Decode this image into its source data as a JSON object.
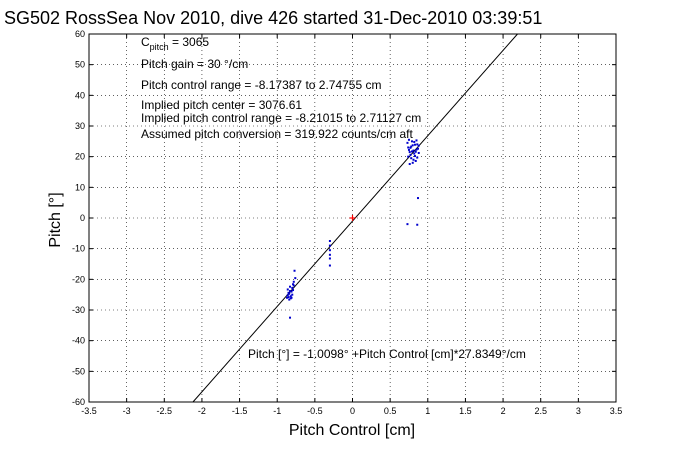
{
  "chart_data": {
    "type": "scatter",
    "title": "SG502 RossSea Nov 2010, dive 426 started 31-Dec-2010 03:39:51",
    "xlabel": "Pitch Control [cm]",
    "ylabel": "Pitch [°]",
    "xlim": [
      -3.5,
      3.5
    ],
    "ylim": [
      -60,
      60
    ],
    "xticks": [
      -3.5,
      -3,
      -2.5,
      -2,
      -1.5,
      -1,
      -0.5,
      0,
      0.5,
      1,
      1.5,
      2,
      2.5,
      3,
      3.5
    ],
    "yticks": [
      -60,
      -50,
      -40,
      -30,
      -20,
      -10,
      0,
      10,
      20,
      30,
      40,
      50,
      60
    ],
    "grid": true,
    "annotations": {
      "c_pitch": {
        "main": "C",
        "sub": "pitch",
        "rest": " = 3065"
      },
      "lines": [
        "Pitch gain = 30 °/cm",
        "Pitch control range = -8.17387 to 2.74755 cm",
        "Implied pitch center = 3076.61",
        "Implied pitch control range = -8.21015 to 2.71127 cm",
        "Assumed pitch conversion = 319.922 counts/cm aft"
      ],
      "fit_label": "Pitch [°] = -1.0098° +Pitch Control [cm]*27.8349°/cm"
    },
    "fit": {
      "intercept": -1.0098,
      "slope": 27.8349,
      "color": "#000000"
    },
    "center_marker": {
      "x": 0,
      "y": 0,
      "color": "#ff0000"
    },
    "series": [
      {
        "color": "#0000cc",
        "points": [
          [
            0.73,
            24.5
          ],
          [
            0.74,
            23.0
          ],
          [
            0.75,
            22.2
          ],
          [
            0.76,
            21.5
          ],
          [
            0.77,
            20.6
          ],
          [
            0.78,
            19.5
          ],
          [
            0.79,
            25.0
          ],
          [
            0.8,
            23.7
          ],
          [
            0.81,
            22.0
          ],
          [
            0.82,
            21.0
          ],
          [
            0.83,
            20.2
          ],
          [
            0.84,
            18.6
          ],
          [
            0.85,
            25.3
          ],
          [
            0.86,
            24.0
          ],
          [
            0.87,
            22.6
          ],
          [
            0.88,
            21.2
          ],
          [
            0.76,
            17.6
          ],
          [
            0.8,
            18.0
          ],
          [
            0.84,
            21.6
          ],
          [
            0.78,
            23.3
          ],
          [
            0.82,
            24.8
          ],
          [
            0.74,
            20.0
          ],
          [
            0.86,
            19.7
          ],
          [
            0.88,
            23.6
          ],
          [
            0.75,
            25.5
          ],
          [
            0.81,
            19.0
          ],
          [
            0.77,
            22.9
          ],
          [
            0.85,
            22.3
          ],
          [
            0.83,
            23.9
          ],
          [
            0.79,
            21.7
          ],
          [
            0.73,
            -2.0
          ],
          [
            0.86,
            -2.2
          ],
          [
            0.87,
            6.5
          ],
          [
            -0.87,
            -26.0
          ],
          [
            -0.86,
            -25.2
          ],
          [
            -0.85,
            -24.4
          ],
          [
            -0.84,
            -26.6
          ],
          [
            -0.83,
            -23.8
          ],
          [
            -0.82,
            -25.5
          ],
          [
            -0.81,
            -24.0
          ],
          [
            -0.8,
            -22.8
          ],
          [
            -0.79,
            -21.6
          ],
          [
            -0.78,
            -20.8
          ],
          [
            -0.86,
            -23.3
          ],
          [
            -0.84,
            -24.7
          ],
          [
            -0.82,
            -26.2
          ],
          [
            -0.8,
            -25.0
          ],
          [
            -0.78,
            -22.0
          ],
          [
            -0.76,
            -19.6
          ],
          [
            -0.85,
            -25.8
          ],
          [
            -0.83,
            -22.4
          ],
          [
            -0.79,
            -23.5
          ],
          [
            -0.77,
            -17.2
          ],
          [
            -0.81,
            -26.0
          ],
          [
            -0.83,
            -32.5
          ],
          [
            -0.3,
            -7.5
          ],
          [
            -0.3,
            -9.0
          ],
          [
            -0.3,
            -10.5
          ],
          [
            -0.3,
            -12.0
          ],
          [
            -0.3,
            -13.2
          ],
          [
            -0.3,
            -15.5
          ]
        ]
      }
    ]
  }
}
